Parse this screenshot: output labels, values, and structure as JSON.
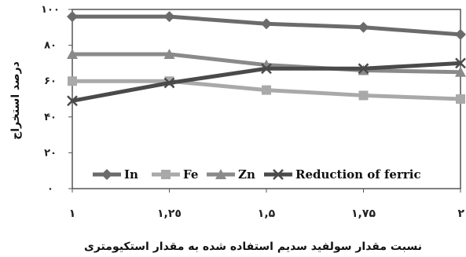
{
  "chart_data": {
    "type": "line",
    "x": [
      "1",
      "1.25",
      "1.5",
      "1.75",
      "2"
    ],
    "x_tick_labels": [
      "١",
      "١,٢٥",
      "١,۵",
      "١,٧۵",
      "٢"
    ],
    "y_tick_labels": [
      "٠",
      "٢٠",
      "۴٠",
      "۶٠",
      "٨٠",
      "١٠٠"
    ],
    "y_ticks": [
      0,
      20,
      40,
      60,
      80,
      100
    ],
    "ylim": [
      0,
      100
    ],
    "ylabel": "درصد استخراج",
    "xlabel": "نسبت مقدار سولفید سدیم استفاده شده به مقدار استکیومتری",
    "legend_position": "bottom-inside",
    "grid": false,
    "series": [
      {
        "name": "In",
        "marker": "diamond",
        "color": "#6b6b6b",
        "values": [
          96,
          96,
          92,
          90,
          86
        ]
      },
      {
        "name": "Fe",
        "marker": "square",
        "color": "#a9a9a9",
        "values": [
          60,
          60,
          55,
          52,
          50
        ]
      },
      {
        "name": "Zn",
        "marker": "triangle",
        "color": "#8a8a8a",
        "values": [
          75,
          75,
          69,
          66,
          65
        ]
      },
      {
        "name": "Reduction of ferric",
        "marker": "x",
        "color": "#4a4a4a",
        "values": [
          49,
          59,
          67,
          67,
          70
        ]
      }
    ]
  }
}
